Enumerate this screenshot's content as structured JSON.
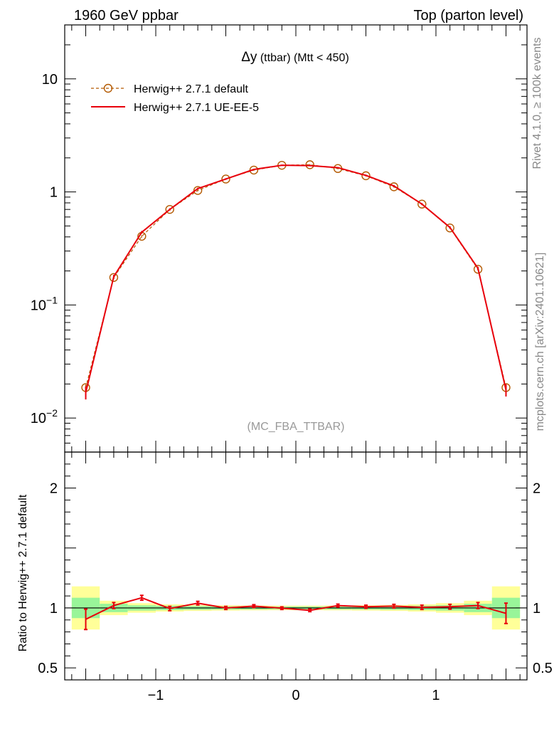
{
  "header": {
    "left": "1960 GeV ppbar",
    "right": "Top (parton level)"
  },
  "side_labels": {
    "rivet": "Rivet 4.1.0, ≥ 100k events",
    "mcplots": "mcplots.cern.ch [arXiv:2401.10621]"
  },
  "chart_data": [
    {
      "type": "line",
      "panel": "main",
      "title_symbol": "Δy",
      "title_rest": " (ttbar) (Mtt < 450)",
      "watermark": "(MC_FBA_TTBAR)",
      "yscale": "log",
      "xlim": [
        -1.65,
        1.65
      ],
      "ylim": [
        0.005,
        30
      ],
      "y_ticks": [
        {
          "value": 0.01,
          "base": "10",
          "exp": "−2"
        },
        {
          "value": 0.1,
          "base": "10",
          "exp": "−1"
        },
        {
          "value": 1,
          "base": "1",
          "exp": ""
        },
        {
          "value": 10,
          "base": "10",
          "exp": ""
        }
      ],
      "x": [
        -1.5,
        -1.3,
        -1.1,
        -0.9,
        -0.7,
        -0.5,
        -0.3,
        -0.1,
        0.1,
        0.3,
        0.5,
        0.7,
        0.9,
        1.1,
        1.3,
        1.5
      ],
      "series": [
        {
          "name": "Herwig++ 2.7.1 default",
          "color": "#b35900",
          "style": "dashed-circles",
          "values": [
            0.0186,
            0.175,
            0.405,
            0.7,
            1.03,
            1.3,
            1.56,
            1.72,
            1.74,
            1.61,
            1.39,
            1.11,
            0.78,
            0.48,
            0.207,
            0.0186
          ],
          "err": [
            0.0012,
            0.006,
            0.01,
            0.014,
            0.018,
            0.02,
            0.02,
            0.02,
            0.02,
            0.02,
            0.02,
            0.018,
            0.014,
            0.01,
            0.006,
            0.0012
          ]
        },
        {
          "name": "Herwig++ 2.7.1 UE-EE-5",
          "color": "#e8000b",
          "style": "solid",
          "values": [
            0.0168,
            0.178,
            0.44,
            0.7,
            1.07,
            1.3,
            1.58,
            1.72,
            1.71,
            1.64,
            1.4,
            1.13,
            0.78,
            0.485,
            0.211,
            0.0177
          ],
          "err": [
            0.0022,
            0.007,
            0.012,
            0.016,
            0.02,
            0.022,
            0.022,
            0.022,
            0.022,
            0.022,
            0.022,
            0.02,
            0.016,
            0.012,
            0.007,
            0.0022
          ]
        }
      ]
    },
    {
      "type": "line",
      "panel": "ratio",
      "ylabel": "Ratio to Herwig++ 2.7.1 default",
      "xlim": [
        -1.65,
        1.65
      ],
      "ylim": [
        0.4,
        2.3
      ],
      "y_ticks": [
        0.5,
        1,
        2
      ],
      "x_ticks": [
        {
          "value": -1,
          "label": "−1"
        },
        {
          "value": 0,
          "label": "0"
        },
        {
          "value": 1,
          "label": "1"
        }
      ],
      "bin_edges": [
        -1.6,
        -1.4,
        -1.2,
        -1.0,
        -0.8,
        -0.6,
        -0.4,
        -0.2,
        0.0,
        0.2,
        0.4,
        0.6,
        0.8,
        1.0,
        1.2,
        1.4,
        1.6
      ],
      "band_green": [
        0.085,
        0.035,
        0.022,
        0.018,
        0.015,
        0.013,
        0.012,
        0.011,
        0.011,
        0.012,
        0.013,
        0.015,
        0.018,
        0.022,
        0.035,
        0.085
      ],
      "band_yellow": [
        0.18,
        0.06,
        0.04,
        0.03,
        0.025,
        0.022,
        0.02,
        0.019,
        0.019,
        0.02,
        0.022,
        0.025,
        0.03,
        0.04,
        0.06,
        0.18
      ],
      "band_colors": {
        "green": "#99f599",
        "yellow": "#ffff99"
      },
      "x": [
        -1.5,
        -1.3,
        -1.1,
        -0.9,
        -0.7,
        -0.5,
        -0.3,
        -0.1,
        0.1,
        0.3,
        0.5,
        0.7,
        0.9,
        1.1,
        1.3,
        1.5
      ],
      "values": [
        0.905,
        1.02,
        1.085,
        0.995,
        1.04,
        1.0,
        1.015,
        0.998,
        0.98,
        1.02,
        1.01,
        1.015,
        1.005,
        1.01,
        1.02,
        0.955
      ],
      "err": [
        0.085,
        0.025,
        0.02,
        0.018,
        0.015,
        0.013,
        0.012,
        0.011,
        0.011,
        0.012,
        0.013,
        0.015,
        0.018,
        0.02,
        0.025,
        0.085
      ],
      "color": "#e8000b"
    }
  ]
}
